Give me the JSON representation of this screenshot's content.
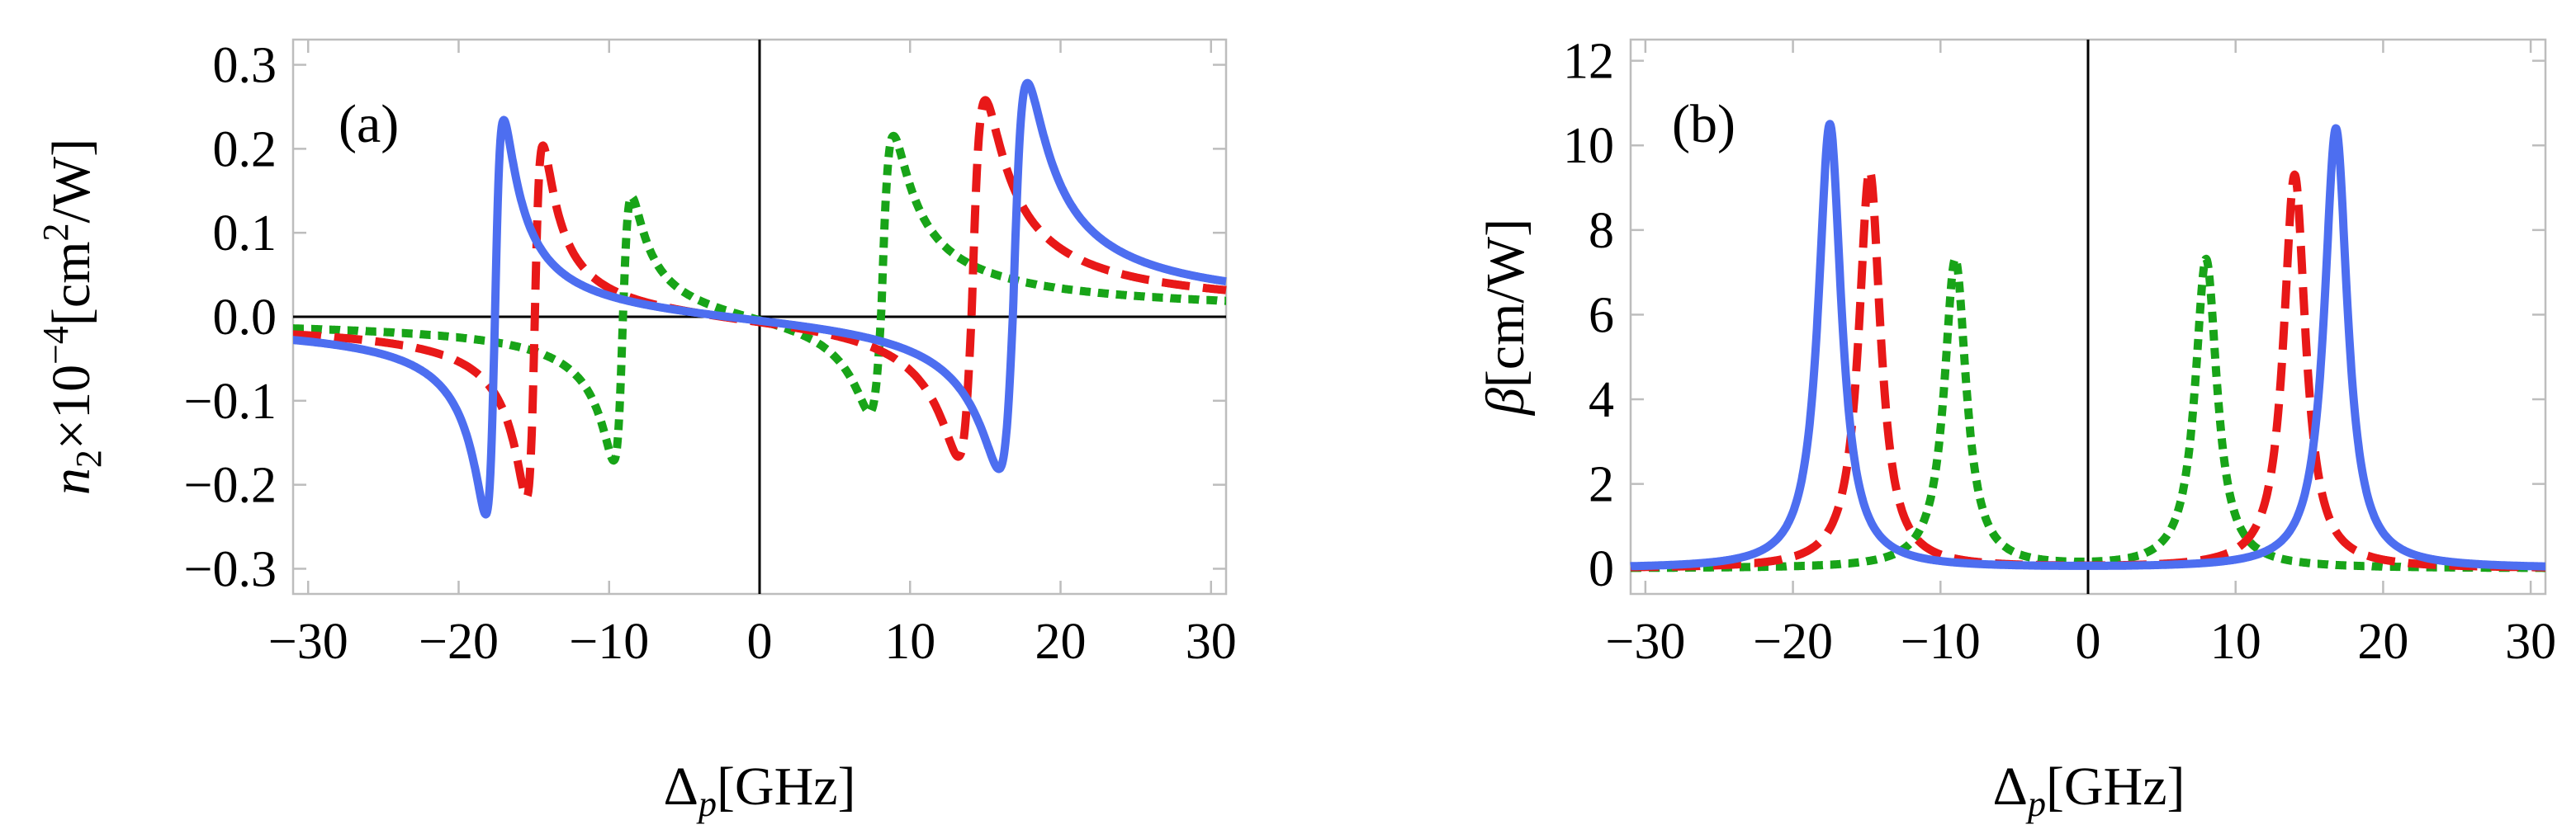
{
  "colors": {
    "solid": "#4d6ef0",
    "dashed": "#e81818",
    "dotted": "#18a418",
    "frame": "#bdbdbd",
    "axis": "#000000"
  },
  "chart_data": [
    {
      "type": "line",
      "panel_label": "(a)",
      "xlabel": "Δ_p[GHz]",
      "ylabel": "n_2×10^-4[cm^2/W]",
      "xlim": [
        -31,
        31
      ],
      "ylim": [
        -0.33,
        0.33
      ],
      "xticks": [
        -30,
        -20,
        -10,
        0,
        10,
        20,
        30
      ],
      "xtick_labels": [
        "−30",
        "−20",
        "−10",
        "0",
        "10",
        "20",
        "30"
      ],
      "yticks": [
        -0.3,
        -0.2,
        -0.1,
        0.0,
        0.1,
        0.2,
        0.3
      ],
      "ytick_labels": [
        "−0.3",
        "−0.2",
        "−0.1",
        "0.0",
        "0.1",
        "0.2",
        "0.3"
      ],
      "grid": false,
      "series": [
        {
          "name": "solid",
          "style": "solid",
          "resonances": [
            {
              "min_x": -18.2,
              "min_y": -0.225,
              "max_x": -17.0,
              "max_y": 0.245
            },
            {
              "min_x": 15.9,
              "min_y": -0.19,
              "max_x": 17.8,
              "max_y": 0.27
            }
          ]
        },
        {
          "name": "dashed",
          "style": "dashed",
          "resonances": [
            {
              "min_x": -15.5,
              "min_y": -0.205,
              "max_x": -14.4,
              "max_y": 0.215
            },
            {
              "min_x": 13.2,
              "min_y": -0.175,
              "max_x": 15.0,
              "max_y": 0.25
            }
          ]
        },
        {
          "name": "dotted",
          "style": "dotted",
          "resonances": [
            {
              "min_x": -9.7,
              "min_y": -0.16,
              "max_x": -8.5,
              "max_y": 0.155
            },
            {
              "min_x": 7.3,
              "min_y": -0.125,
              "max_x": 8.9,
              "max_y": 0.205
            }
          ]
        }
      ]
    },
    {
      "type": "line",
      "panel_label": "(b)",
      "xlabel": "Δ_p[GHz]",
      "ylabel": "β[cm/W]",
      "xlim": [
        -31,
        31
      ],
      "ylim": [
        -0.6,
        12.5
      ],
      "xticks": [
        -30,
        -20,
        -10,
        0,
        10,
        20,
        30
      ],
      "xtick_labels": [
        "−30",
        "−20",
        "−10",
        "0",
        "10",
        "20",
        "30"
      ],
      "yticks": [
        0,
        2,
        4,
        6,
        8,
        10,
        12
      ],
      "ytick_labels": [
        "0",
        "2",
        "4",
        "6",
        "8",
        "10",
        "12"
      ],
      "grid": false,
      "series": [
        {
          "name": "solid",
          "style": "solid",
          "peaks": [
            {
              "x": -17.5,
              "y": 10.5,
              "width": 0.95
            },
            {
              "x": 16.8,
              "y": 10.4,
              "width": 0.95
            }
          ]
        },
        {
          "name": "dashed",
          "style": "dashed",
          "peaks": [
            {
              "x": -14.8,
              "y": 9.4,
              "width": 0.9
            },
            {
              "x": 14.0,
              "y": 9.3,
              "width": 0.9
            }
          ]
        },
        {
          "name": "dotted",
          "style": "dotted",
          "peaks": [
            {
              "x": -9.0,
              "y": 7.3,
              "width": 0.9
            },
            {
              "x": 8.0,
              "y": 7.3,
              "width": 0.9
            }
          ]
        }
      ]
    }
  ]
}
